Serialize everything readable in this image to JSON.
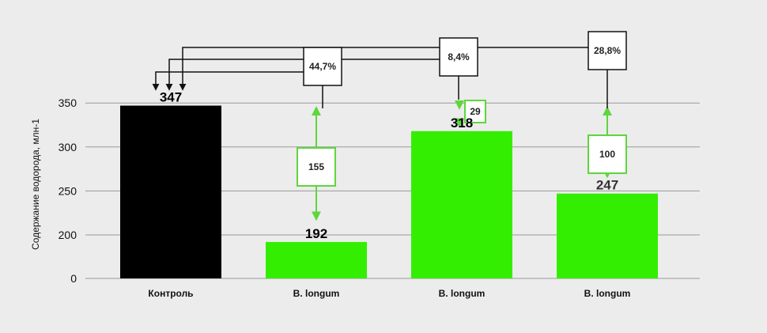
{
  "chart_data": {
    "type": "bar",
    "ylabel": "Содержание водорода, млн-1",
    "xlabel": "",
    "ylim_axis": [
      0,
      350
    ],
    "yticks": [
      0,
      200,
      250,
      300,
      350
    ],
    "categories": [
      "Контроль",
      "B. longum",
      "B. longum",
      "B. longum"
    ],
    "values": [
      347,
      192,
      318,
      247
    ],
    "value_labels": [
      "347",
      "192",
      "318",
      "247"
    ],
    "bar_colors": [
      "#000000",
      "#33ee00",
      "#33ee00",
      "#33ee00"
    ],
    "reductions": [
      {
        "label": "155",
        "from_value": 347,
        "to_value": 192
      },
      {
        "label": "29",
        "from_value": 347,
        "to_value": 318
      },
      {
        "label": "100",
        "from_value": 347,
        "to_value": 247
      }
    ],
    "percent_boxes": [
      "44,7%",
      "8,4%",
      "28,8%"
    ],
    "grid": true,
    "legend": "none"
  },
  "colors": {
    "background": "#ececec",
    "control": "#000000",
    "treatment": "#33ee00",
    "grid": "#9a9a9a",
    "arrow_green": "#5ed63c"
  }
}
